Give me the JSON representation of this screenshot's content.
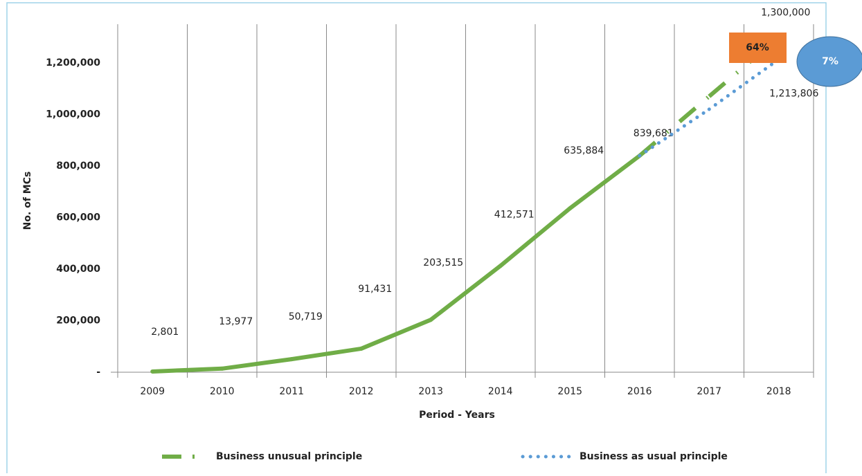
{
  "chart_data": {
    "type": "line",
    "x_label": "Period - Years",
    "y_label": "No. of MCs",
    "categories": [
      "2009",
      "2010",
      "2011",
      "2012",
      "2013",
      "2014",
      "2015",
      "2016",
      "2017",
      "2018"
    ],
    "series": [
      {
        "name": "Business unusual principle",
        "color": "#70ad47",
        "values": [
          2801,
          13977,
          50719,
          91431,
          203515,
          412571,
          635884,
          839681,
          1070000,
          1300000
        ],
        "value_labels": [
          "2,801",
          "13,977",
          "50,719",
          "91,431",
          "203,515",
          "412,571",
          "635,884",
          "839,681",
          null,
          "1,300,000"
        ]
      },
      {
        "name": "Business as usual principle",
        "color": "#5b9bd5",
        "values": [
          null,
          null,
          null,
          null,
          null,
          null,
          null,
          839681,
          1020000,
          1213806
        ],
        "value_labels": [
          null,
          null,
          null,
          null,
          null,
          null,
          null,
          null,
          null,
          "1,213,806"
        ]
      }
    ],
    "ylim": [
      0,
      1350000
    ],
    "yticks": [
      {
        "value": 0,
        "label": "-"
      },
      {
        "value": 200000,
        "label": "200,000"
      },
      {
        "value": 400000,
        "label": "400,000"
      },
      {
        "value": 600000,
        "label": "600,000"
      },
      {
        "value": 800000,
        "label": "800,000"
      },
      {
        "value": 1000000,
        "label": "1,000,000"
      },
      {
        "value": 1200000,
        "label": "1,200,000"
      }
    ],
    "grid": "vertical",
    "legend": "bottom",
    "annotations": [
      {
        "text": "64%",
        "color": "#ed7d31"
      },
      {
        "text": "7%",
        "color": "#5b9bd5"
      }
    ]
  }
}
